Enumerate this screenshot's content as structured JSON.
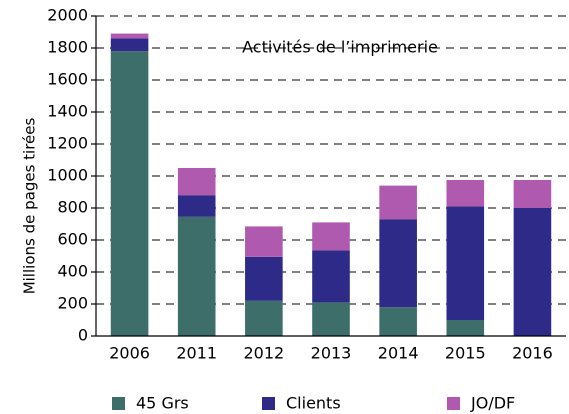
{
  "chart_data": {
    "type": "stacked_bar",
    "title": "Activités de l’imprimerie",
    "y_label": "Millions de pages tirées",
    "categories": [
      "2006",
      "2011",
      "2012",
      "2013",
      "2014",
      "2015",
      "2016"
    ],
    "series": [
      {
        "name": "45 Grs",
        "color": "#3d6e6a",
        "values": [
          1780,
          745,
          220,
          210,
          180,
          100,
          0
        ]
      },
      {
        "name": "Clients",
        "color": "#2e2a87",
        "values": [
          80,
          135,
          275,
          325,
          550,
          710,
          800
        ]
      },
      {
        "name": "JO/DF",
        "color": "#b05aaf",
        "values": [
          30,
          170,
          190,
          175,
          210,
          165,
          175
        ]
      }
    ],
    "ylim": [
      0,
      2000
    ],
    "yticks": [
      0,
      200,
      400,
      600,
      800,
      1000,
      1200,
      1400,
      1600,
      1800,
      2000
    ],
    "grid": true,
    "legend": "bottom"
  }
}
